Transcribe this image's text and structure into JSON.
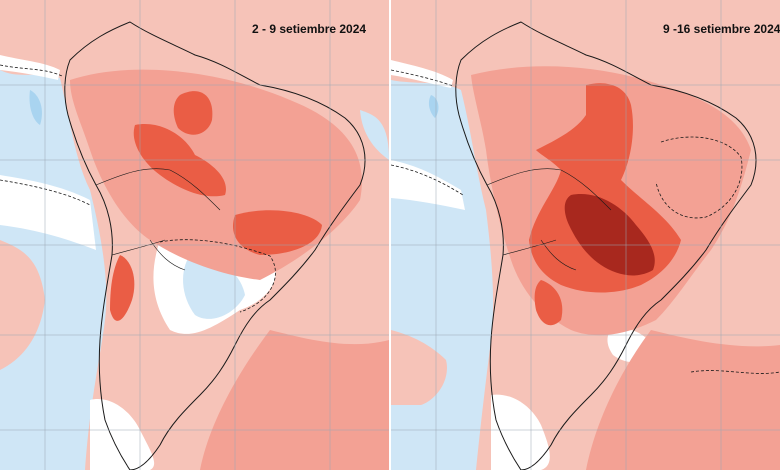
{
  "panels": [
    {
      "title": "2 - 9 setiembre 2024"
    },
    {
      "title": "9 -16 setiembre 2024"
    }
  ],
  "colors": {
    "ocean_cold": "#cfe6f6",
    "ocean_cold_deep": "#a9d4f0",
    "neutral": "#ffffff",
    "warm_light": "#f6c3b8",
    "warm": "#f3a194",
    "warm_strong": "#ea5d45",
    "warm_extreme": "#a8281e",
    "coast": "#1a1a1a",
    "grid": "#9aa7b3"
  }
}
